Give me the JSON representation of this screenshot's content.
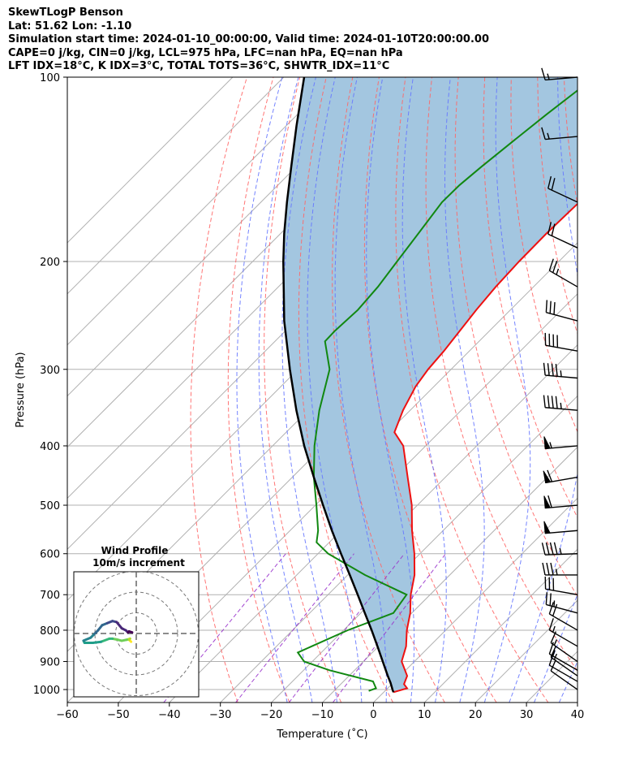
{
  "header": {
    "line1": "SkewTLogP Benson",
    "line2": "Lat: 51.62   Lon: -1.10",
    "line3": "Simulation start time: 2024-01-10_00:00:00, Valid time: 2024-01-10T20:00:00.00",
    "line4": "CAPE=0 j/kg, CIN=0 j/kg, LCL=975 hPa, LFC=nan hPa, EQ=nan hPa",
    "line5": "LFT IDX=18°C, K IDX=3°C, TOTAL TOTS=36°C, SHWTR_IDX=11°C"
  },
  "colors": {
    "temperature": "#ee1111",
    "dewpoint": "#118811",
    "parcel": "#000000",
    "fill": "#a3c6e0",
    "dry_adiabat": "#ff6666",
    "moist_adiabat": "#6677ff",
    "mixing_ratio": "#9933cc",
    "isotherm": "#b0b0b0"
  },
  "chart_data": {
    "type": "line",
    "title": "SkewTLogP Benson",
    "xlabel": "Temperature (˚C)",
    "ylabel": "Pressure (hPa)",
    "xlim": [
      -60,
      40
    ],
    "ylim": [
      1050,
      100
    ],
    "x_ticks": [
      -60,
      -50,
      -40,
      -30,
      -20,
      -10,
      0,
      10,
      20,
      30,
      40
    ],
    "x_tick_labels": [
      "−60",
      "−50",
      "−40",
      "−30",
      "−20",
      "−10",
      "0",
      "10",
      "20",
      "30",
      "40"
    ],
    "y_ticks": [
      1000,
      900,
      800,
      700,
      600,
      500,
      400,
      300,
      200,
      100
    ],
    "y_tick_labels": [
      "1000",
      "900",
      "800",
      "700",
      "600",
      "500",
      "400",
      "300",
      "200",
      "100"
    ],
    "series": [
      {
        "name": "Temperature",
        "pressure": [
          1010,
          995,
          980,
          950,
          900,
          850,
          800,
          750,
          700,
          650,
          600,
          550,
          500,
          450,
          400,
          380,
          350,
          320,
          300,
          280,
          260,
          240,
          220,
          200,
          180,
          160,
          140,
          120,
          110,
          105,
          100
        ],
        "values": [
          1.9,
          3.8,
          2.4,
          1.4,
          -2.5,
          -4.6,
          -7.6,
          -10.3,
          -13.8,
          -16.9,
          -21.1,
          -26.1,
          -31.1,
          -37.4,
          -44.4,
          -48.8,
          -51.4,
          -53.6,
          -54.5,
          -55.0,
          -55.8,
          -56.7,
          -57.4,
          -57.8,
          -57.9,
          -57.6,
          -56.6,
          -56.1,
          -56.2,
          -55.8,
          -55.3
        ]
      },
      {
        "name": "Dewpoint",
        "pressure": [
          1005,
          995,
          970,
          930,
          900,
          870,
          800,
          750,
          700,
          650,
          600,
          575,
          550,
          500,
          450,
          400,
          350,
          300,
          270,
          260,
          240,
          220,
          200,
          180,
          160,
          150,
          140,
          125,
          115,
          110,
          105,
          100
        ],
        "values": [
          -3.2,
          -2.3,
          -4.2,
          -14.9,
          -21.6,
          -24.6,
          -19.2,
          -13.6,
          -14.6,
          -26.6,
          -38.0,
          -42.5,
          -44.5,
          -49.8,
          -55.8,
          -61.8,
          -67.8,
          -73.8,
          -80.2,
          -80.3,
          -79.9,
          -80.5,
          -81.7,
          -83.0,
          -84.5,
          -84.4,
          -83.7,
          -82.3,
          -81.2,
          -80.5,
          -79.8,
          -79.2
        ]
      },
      {
        "name": "Parcel",
        "pressure": [
          1010,
          1000,
          975,
          950,
          900,
          850,
          800,
          750,
          700,
          650,
          600,
          550,
          500,
          450,
          400,
          350,
          300,
          250,
          200,
          180,
          160,
          140,
          120,
          100
        ],
        "values": [
          1.9,
          1.2,
          -0.5,
          -2.4,
          -6.2,
          -10.2,
          -14.5,
          -19.2,
          -24.2,
          -29.6,
          -35.5,
          -41.8,
          -48.5,
          -55.8,
          -63.8,
          -72.3,
          -81.6,
          -92.2,
          -104.0,
          -109.3,
          -114.9,
          -121.0,
          -128.0,
          -136.0
        ]
      }
    ],
    "wind_barbs_pressure": [
      100,
      125,
      160,
      190,
      220,
      250,
      280,
      310,
      350,
      400,
      450,
      500,
      550,
      600,
      650,
      700,
      750,
      800,
      850,
      900,
      930,
      950,
      970,
      1000
    ],
    "wind_barbs_speed_kt": [
      15,
      15,
      20,
      20,
      25,
      30,
      40,
      45,
      45,
      55,
      60,
      60,
      50,
      45,
      35,
      30,
      25,
      20,
      15,
      15,
      15,
      15,
      10,
      10
    ],
    "wind_barbs_direction_deg": [
      265,
      265,
      295,
      295,
      300,
      285,
      280,
      275,
      275,
      265,
      260,
      265,
      265,
      268,
      270,
      280,
      285,
      300,
      300,
      305,
      300,
      305,
      300,
      305
    ],
    "hodograph": {
      "title": "Wind Profile",
      "subtitle": "10m/s increment",
      "rings_ms": [
        10,
        20,
        30
      ],
      "u_ms": [
        -2.5,
        -3.5,
        -3.0,
        -4.5,
        -7.0,
        -9.0,
        -11.5,
        -13.0,
        -17.0,
        -21.0,
        -25.0,
        -25.5,
        -22.0,
        -20.0,
        -18.5,
        -16.5,
        -14.0,
        -11.5,
        -9.5,
        -7.0,
        -5.0,
        -4.0,
        -3.5,
        -2.0
      ],
      "v_ms": [
        -4.0,
        -3.0,
        -2.5,
        -3.0,
        -3.5,
        -3.0,
        -2.5,
        -2.5,
        -4.0,
        -4.5,
        -4.5,
        -3.5,
        -2.0,
        0.0,
        1.5,
        4.0,
        5.0,
        6.0,
        5.5,
        2.5,
        1.5,
        0.5,
        1.0,
        0.5
      ],
      "colormap": "viridis"
    }
  }
}
